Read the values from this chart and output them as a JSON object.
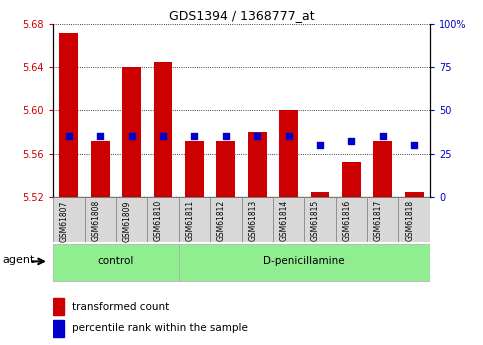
{
  "title": "GDS1394 / 1368777_at",
  "samples": [
    "GSM61807",
    "GSM61808",
    "GSM61809",
    "GSM61810",
    "GSM61811",
    "GSM61812",
    "GSM61813",
    "GSM61814",
    "GSM61815",
    "GSM61816",
    "GSM61817",
    "GSM61818"
  ],
  "bar_values": [
    5.672,
    5.572,
    5.64,
    5.645,
    5.572,
    5.572,
    5.58,
    5.6,
    5.524,
    5.552,
    5.572,
    5.524
  ],
  "percentile_values": [
    35,
    35,
    35,
    35,
    35,
    35,
    35,
    35,
    30,
    32,
    35,
    30
  ],
  "bar_bottom": 5.52,
  "ylim_left": [
    5.52,
    5.68
  ],
  "ylim_right": [
    0,
    100
  ],
  "yticks_left": [
    5.52,
    5.56,
    5.6,
    5.64,
    5.68
  ],
  "yticks_right": [
    0,
    25,
    50,
    75,
    100
  ],
  "bar_color": "#cc0000",
  "blue_color": "#0000cc",
  "group_bg": "#90ee90",
  "sample_bg": "#d8d8d8",
  "agent_label": "agent",
  "legend_bar_label": "transformed count",
  "legend_dot_label": "percentile rank within the sample",
  "bar_width": 0.6,
  "group_regions": [
    {
      "label": "control",
      "start": 0,
      "end": 3
    },
    {
      "label": "D-penicillamine",
      "start": 4,
      "end": 11
    }
  ]
}
